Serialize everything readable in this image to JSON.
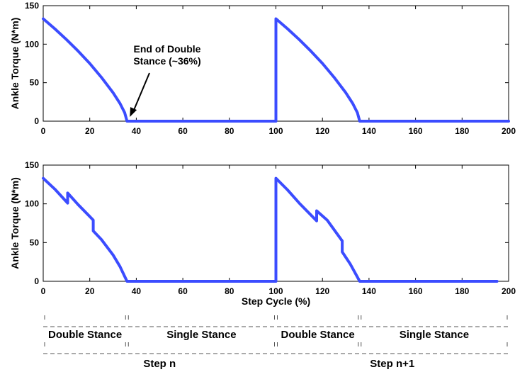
{
  "colors": {
    "line": "#3b4cff",
    "axis": "#000000",
    "dashes": "#555555"
  },
  "chart_data": [
    {
      "type": "line",
      "title": "",
      "xlabel": "",
      "ylabel": "Ankle Torque (N*m)",
      "xlim": [
        0,
        200
      ],
      "ylim": [
        0,
        150
      ],
      "xticks": [
        0,
        20,
        40,
        60,
        80,
        100,
        120,
        140,
        160,
        180,
        200
      ],
      "yticks": [
        0,
        50,
        100,
        150
      ],
      "grid": false,
      "series": [
        {
          "x": [
            0,
            5,
            10,
            15,
            20,
            25,
            30,
            33,
            35,
            36,
            100,
            100,
            105,
            110,
            115,
            120,
            125,
            130,
            133,
            135,
            136,
            200
          ],
          "y": [
            133,
            120,
            106,
            91,
            75,
            57,
            37,
            23,
            11,
            0,
            0,
            133,
            120,
            106,
            91,
            75,
            57,
            37,
            23,
            11,
            0,
            0
          ]
        }
      ],
      "annotations": [
        {
          "text_lines": [
            "End of Double",
            "Stance (~36%)"
          ],
          "x": 36,
          "y": 0
        }
      ]
    },
    {
      "type": "line",
      "title": "",
      "xlabel": "Step Cycle (%)",
      "ylabel": "Ankle Torque (N*m)",
      "xlim": [
        0,
        200
      ],
      "ylim": [
        0,
        150
      ],
      "xticks": [
        0,
        20,
        40,
        60,
        80,
        100,
        120,
        140,
        160,
        180,
        200
      ],
      "yticks": [
        0,
        50,
        100,
        150
      ],
      "grid": false,
      "series": [
        {
          "x": [
            0,
            5,
            10.5,
            10.5,
            15,
            21.5,
            21.5,
            25,
            30,
            33,
            36,
            100,
            100,
            105,
            110,
            117.5,
            117.5,
            122,
            128.5,
            128.5,
            132,
            136,
            195
          ],
          "y": [
            133,
            119,
            101,
            114,
            99,
            79,
            65,
            54,
            34,
            19,
            0,
            0,
            133,
            118,
            101,
            78,
            91,
            79,
            52,
            38,
            22,
            0,
            0
          ]
        }
      ]
    }
  ],
  "phases": {
    "row1": [
      {
        "label": "Double Stance",
        "start": 0,
        "end": 36
      },
      {
        "label": "Single Stance",
        "start": 36,
        "end": 100
      },
      {
        "label": "Double Stance",
        "start": 100,
        "end": 136
      },
      {
        "label": "Single Stance",
        "start": 136,
        "end": 200
      }
    ],
    "row2": [
      {
        "label": "Step n",
        "start": 0,
        "end": 100
      },
      {
        "label": "Step n+1",
        "start": 100,
        "end": 200
      }
    ]
  }
}
